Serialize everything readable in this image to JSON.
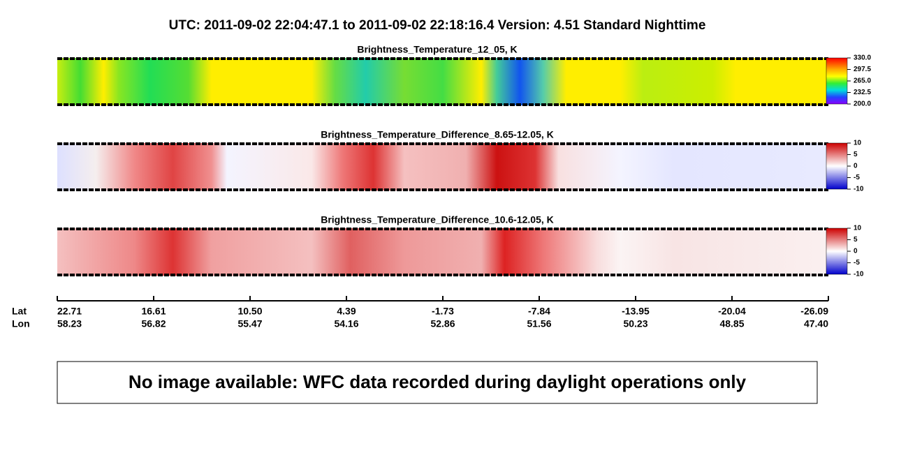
{
  "header": {
    "title": "UTC:  2011-09-02   22:04:47.1  to  2011-09-02   22:18:16.4    Version: 4.51  Standard Nighttime"
  },
  "panels": [
    {
      "title": "Brightness_Temperature_12_05, K",
      "colorbar_ticks": [
        "330.0",
        "297.5",
        "265.0",
        "232.5",
        "200.0"
      ]
    },
    {
      "title": "Brightness_Temperature_Difference_8.65-12.05, K",
      "colorbar_ticks": [
        "10",
        "5",
        "0",
        "-5",
        "-10"
      ]
    },
    {
      "title": "Brightness_Temperature_Difference_10.6-12.05, K",
      "colorbar_ticks": [
        "10",
        "5",
        "0",
        "-5",
        "-10"
      ]
    }
  ],
  "axis": {
    "row_labels": [
      "Lat",
      "Lon"
    ],
    "lat": [
      "22.71",
      "16.61",
      "10.50",
      "4.39",
      "-1.73",
      "-7.84",
      "-13.95",
      "-20.04",
      "-26.09"
    ],
    "lon": [
      "58.23",
      "56.82",
      "55.47",
      "54.16",
      "52.86",
      "51.56",
      "50.23",
      "48.85",
      "47.40"
    ]
  },
  "message": "No image available: WFC data recorded during daylight operations only"
}
